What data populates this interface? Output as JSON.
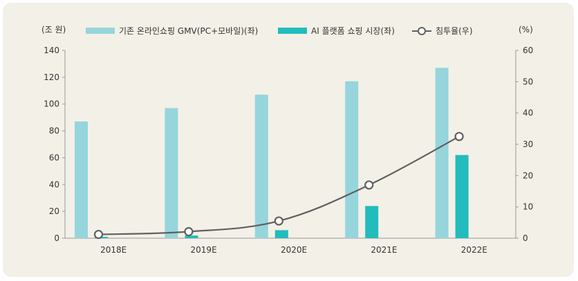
{
  "chart_data": {
    "type": "bar",
    "categories": [
      "2018E",
      "2019E",
      "2020E",
      "2021E",
      "2022E"
    ],
    "series": [
      {
        "name": "기존 온라인쇼핑 GMV(PC+모바일)(좌)",
        "type": "bar",
        "axis": "left",
        "values": [
          87,
          97,
          107,
          117,
          127
        ],
        "color": "#96d5dc"
      },
      {
        "name": "AI 플랫폼 쇼핑 시장(좌)",
        "type": "bar",
        "axis": "left",
        "values": [
          1,
          2,
          6,
          24,
          62
        ],
        "color": "#22bcbc"
      },
      {
        "name": "침투율(우)",
        "type": "line",
        "axis": "right",
        "values": [
          1.2,
          2.1,
          5.5,
          17,
          32.5
        ],
        "color": "#606060"
      }
    ],
    "ylabel_left": "(조 원)",
    "ylabel_right": "(%)",
    "ylim_left": [
      0,
      140
    ],
    "yticks_left": [
      0,
      20,
      40,
      60,
      80,
      100,
      120,
      140
    ],
    "ylim_right": [
      0,
      60
    ],
    "yticks_right": [
      0,
      10,
      20,
      30,
      40,
      50,
      60
    ],
    "grid": false,
    "legend_position": "top"
  }
}
